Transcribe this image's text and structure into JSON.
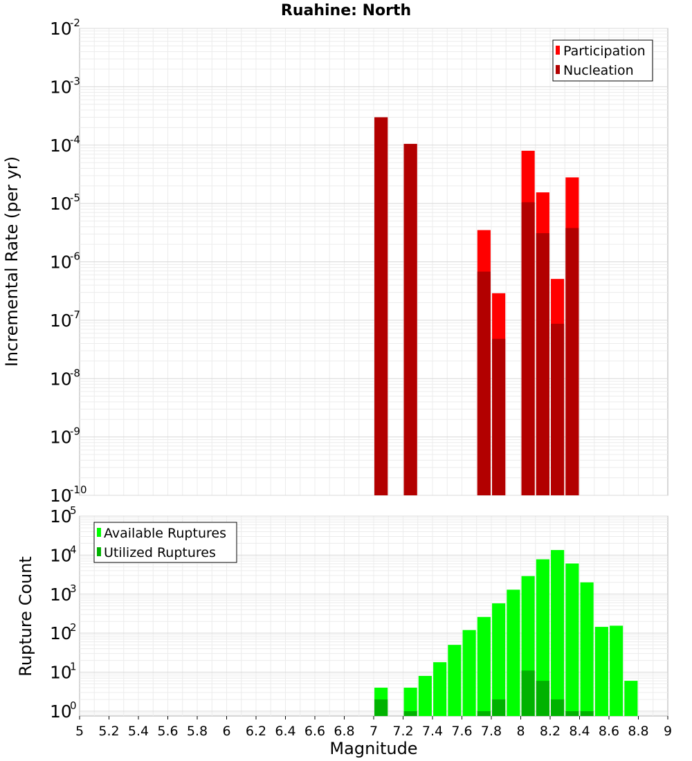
{
  "chart_data": [
    {
      "type": "bar",
      "title": "Ruahine: North",
      "xlabel": "",
      "ylabel": "Incremental Rate (per yr)",
      "xlim": [
        5,
        9
      ],
      "yscale": "log",
      "ylim": [
        1e-10,
        0.01
      ],
      "y_tick_exponents": [
        -10,
        -9,
        -8,
        -7,
        -6,
        -5,
        -4,
        -3,
        -2
      ],
      "grid": true,
      "legend_position": "top-right",
      "bar_width": 0.09,
      "series": [
        {
          "name": "Participation",
          "color": "#ff0000",
          "points": [
            {
              "x": 7.05,
              "y": 0.0003
            },
            {
              "x": 7.25,
              "y": 0.000105
            },
            {
              "x": 7.75,
              "y": 3.5e-06
            },
            {
              "x": 7.85,
              "y": 2.9e-07
            },
            {
              "x": 8.05,
              "y": 8e-05
            },
            {
              "x": 8.15,
              "y": 1.55e-05
            },
            {
              "x": 8.25,
              "y": 5.1e-07
            },
            {
              "x": 8.35,
              "y": 2.8e-05
            }
          ]
        },
        {
          "name": "Nucleation",
          "color": "#b20000",
          "points": [
            {
              "x": 7.05,
              "y": 0.0003
            },
            {
              "x": 7.25,
              "y": 0.000105
            },
            {
              "x": 7.75,
              "y": 6.8e-07
            },
            {
              "x": 7.85,
              "y": 4.8e-08
            },
            {
              "x": 8.05,
              "y": 1.05e-05
            },
            {
              "x": 8.15,
              "y": 3.1e-06
            },
            {
              "x": 8.25,
              "y": 8.7e-08
            },
            {
              "x": 8.35,
              "y": 3.8e-06
            }
          ]
        }
      ]
    },
    {
      "type": "bar",
      "title": "",
      "xlabel": "Magnitude",
      "ylabel": "Rupture Count",
      "xlim": [
        5,
        9
      ],
      "yscale": "log",
      "ylim": [
        0.75,
        100000
      ],
      "y_tick_exponents": [
        0,
        1,
        2,
        3,
        4,
        5
      ],
      "x_ticks": [
        "5",
        "5.2",
        "5.4",
        "5.6",
        "5.8",
        "6",
        "6.2",
        "6.4",
        "6.6",
        "6.8",
        "7",
        "7.2",
        "7.4",
        "7.6",
        "7.8",
        "8",
        "8.2",
        "8.4",
        "8.6",
        "8.8",
        "9"
      ],
      "grid": true,
      "legend_position": "top-left",
      "bar_width": 0.09,
      "series": [
        {
          "name": "Available Ruptures",
          "color": "#00ff00",
          "points": [
            {
              "x": 7.05,
              "y": 4
            },
            {
              "x": 7.25,
              "y": 4
            },
            {
              "x": 7.35,
              "y": 8
            },
            {
              "x": 7.45,
              "y": 18
            },
            {
              "x": 7.55,
              "y": 50
            },
            {
              "x": 7.65,
              "y": 120
            },
            {
              "x": 7.75,
              "y": 260
            },
            {
              "x": 7.85,
              "y": 580
            },
            {
              "x": 7.95,
              "y": 1300
            },
            {
              "x": 8.05,
              "y": 2900
            },
            {
              "x": 8.15,
              "y": 7800
            },
            {
              "x": 8.25,
              "y": 13500
            },
            {
              "x": 8.35,
              "y": 6100
            },
            {
              "x": 8.45,
              "y": 2000
            },
            {
              "x": 8.55,
              "y": 145
            },
            {
              "x": 8.65,
              "y": 155
            },
            {
              "x": 8.75,
              "y": 6
            }
          ]
        },
        {
          "name": "Utilized Ruptures",
          "color": "#00b200",
          "points": [
            {
              "x": 7.05,
              "y": 2
            },
            {
              "x": 7.25,
              "y": 1
            },
            {
              "x": 7.75,
              "y": 1
            },
            {
              "x": 7.85,
              "y": 2
            },
            {
              "x": 8.05,
              "y": 11
            },
            {
              "x": 8.15,
              "y": 6
            },
            {
              "x": 8.25,
              "y": 2
            },
            {
              "x": 8.35,
              "y": 1
            },
            {
              "x": 8.45,
              "y": 1
            }
          ]
        }
      ]
    }
  ]
}
